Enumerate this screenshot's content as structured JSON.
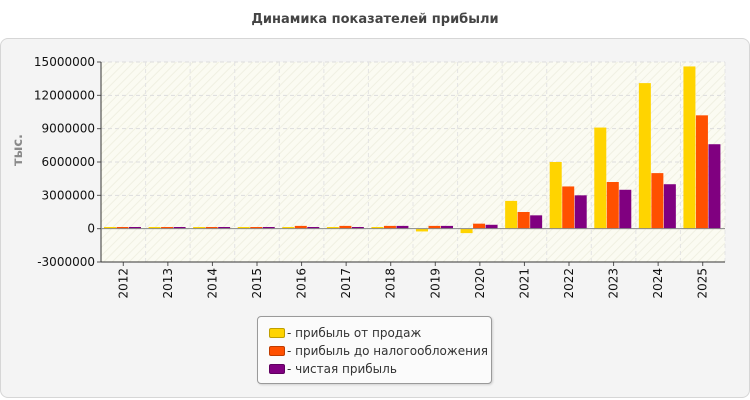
{
  "chart_data": {
    "type": "bar",
    "title": "Динамика показателей прибыли",
    "ylabel": "тыс.",
    "xlabel": "",
    "ylim": [
      -3000000,
      15000000
    ],
    "yticks": [
      -3000000,
      0,
      3000000,
      6000000,
      9000000,
      12000000,
      15000000
    ],
    "ytick_labels": [
      "-3000000",
      "0",
      "3000000",
      "6000000",
      "9000000",
      "12000000",
      "15000000"
    ],
    "grid": true,
    "legend_position": "bottom",
    "categories": [
      "2012",
      "2013",
      "2014",
      "2015",
      "2016",
      "2017",
      "2018",
      "2019",
      "2020",
      "2021",
      "2022",
      "2023",
      "2024",
      "2025"
    ],
    "series": [
      {
        "name": "- прибыль от продаж",
        "color": "#ffd400",
        "values": [
          150000,
          150000,
          150000,
          150000,
          150000,
          150000,
          150000,
          -250000,
          -400000,
          2500000,
          6000000,
          9100000,
          13100000,
          14600000
        ]
      },
      {
        "name": "- прибыль до налогообложения",
        "color": "#ff5000",
        "values": [
          150000,
          150000,
          150000,
          150000,
          250000,
          250000,
          250000,
          250000,
          450000,
          1500000,
          3800000,
          4200000,
          5000000,
          10200000
        ]
      },
      {
        "name": "- чистая прибыль",
        "color": "#800080",
        "values": [
          150000,
          150000,
          150000,
          150000,
          150000,
          150000,
          250000,
          250000,
          350000,
          1200000,
          3000000,
          3500000,
          4000000,
          7600000
        ]
      }
    ]
  }
}
